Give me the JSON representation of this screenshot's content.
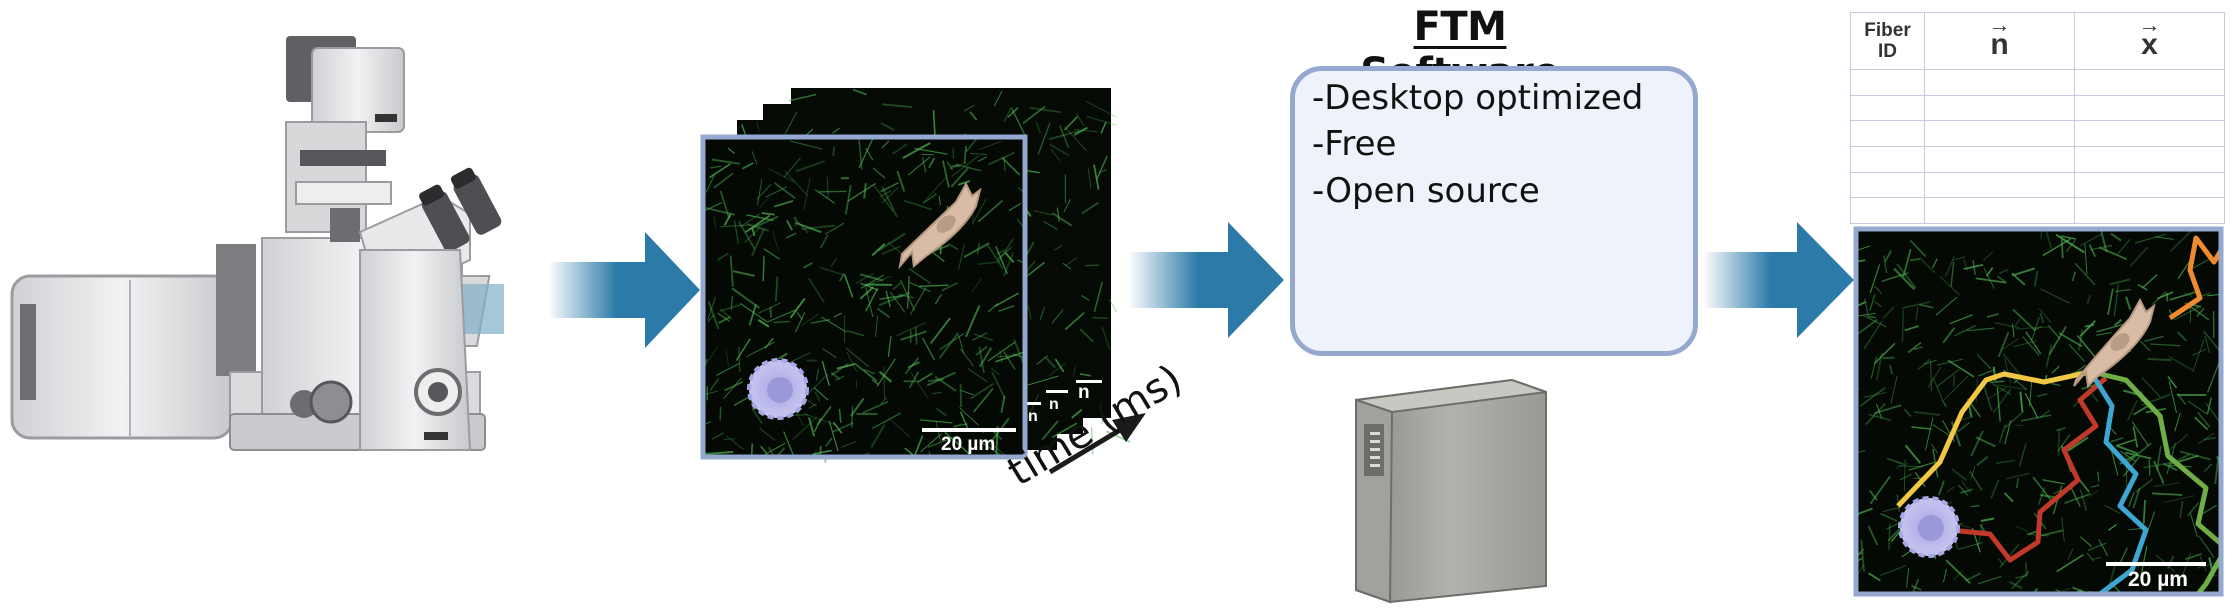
{
  "software": {
    "title": "FTM Software",
    "features": [
      "-Desktop optimized",
      "-Free",
      "-Open source"
    ]
  },
  "time_axis": {
    "label": "time (ms)"
  },
  "scale_bars": {
    "input": "20 µm",
    "output": "20 µm",
    "stack_partial": [
      "n",
      "n",
      "n"
    ]
  },
  "fiber_table": {
    "headers": [
      {
        "label_lines": [
          "Fiber",
          "ID"
        ]
      },
      {
        "symbol": "n",
        "vector": true
      },
      {
        "symbol": "x",
        "vector": true
      }
    ],
    "empty_rows": 6
  },
  "trajectories": [
    {
      "name": "yellow",
      "color": "#f2c744"
    },
    {
      "name": "red",
      "color": "#c0392b"
    },
    {
      "name": "blue",
      "color": "#3ea6d2"
    },
    {
      "name": "green",
      "color": "#6fae46"
    },
    {
      "name": "orange",
      "color": "#f08a30"
    }
  ],
  "colors": {
    "flow_arrow": "#2c7aa8",
    "frame_border": "#95a8cf",
    "fiber_green": "#4caf50",
    "globe_arrows": "#f0b04a",
    "cell_beige": "#d9bca6",
    "cell_purple": "#b7b6ea"
  }
}
